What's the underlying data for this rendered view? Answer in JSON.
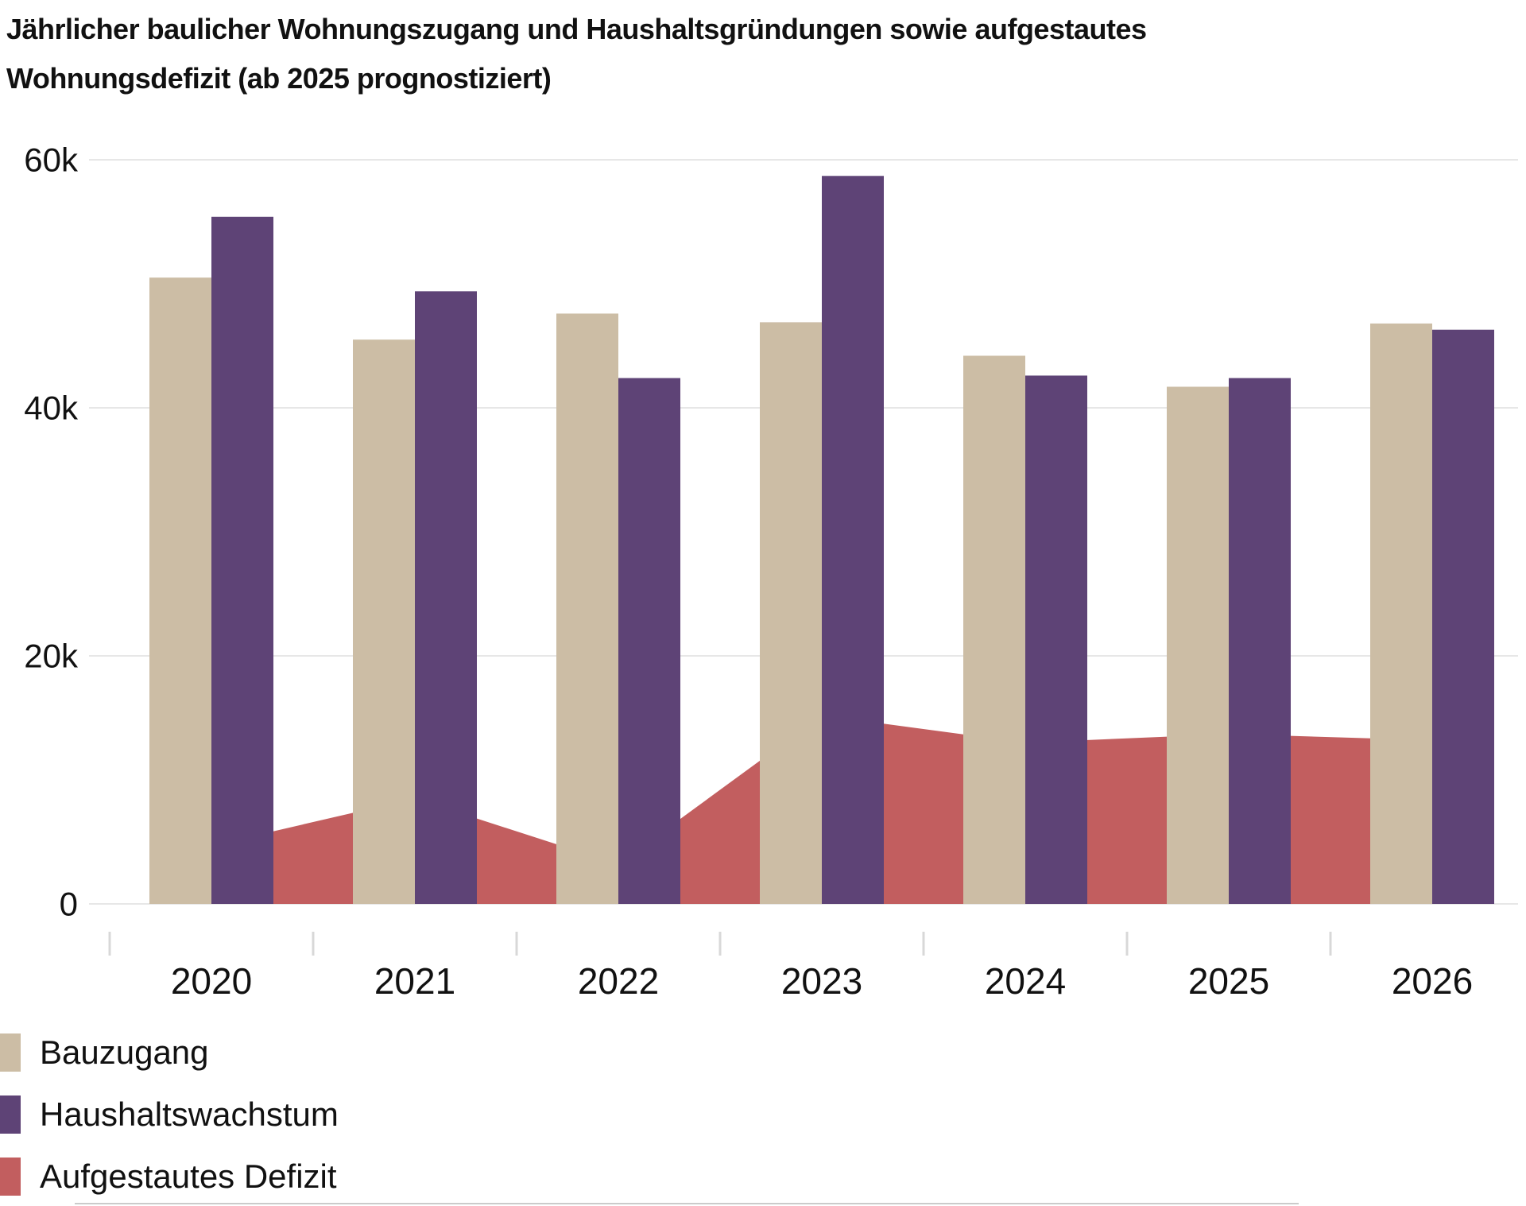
{
  "title": {
    "line1": "Jährlicher baulicher Wohnungszugang und Haushaltsgründungen sowie aufgestautes",
    "line2": "Wohnungsdefizit (ab 2025 prognostiziert)"
  },
  "chart_data": {
    "type": "bar",
    "subtype": "grouped-bars-with-area-overlay",
    "categories": [
      "2020",
      "2021",
      "2022",
      "2023",
      "2024",
      "2025",
      "2026"
    ],
    "series": [
      {
        "name": "Bauzugang",
        "type": "bar",
        "color": "#ccbda5",
        "values": [
          50500,
          45500,
          47600,
          46900,
          44200,
          41700,
          46800
        ]
      },
      {
        "name": "Haushaltswachstum",
        "type": "bar",
        "color": "#5e4376",
        "values": [
          55400,
          49400,
          42400,
          58700,
          42600,
          42400,
          46300
        ]
      },
      {
        "name": "Aufgestautes Defizit",
        "type": "area",
        "color": "#c25e5f",
        "values": [
          4700,
          8500,
          3200,
          15200,
          13000,
          13700,
          13200
        ]
      }
    ],
    "y_axis": {
      "ticks": [
        {
          "value": 0,
          "label": "0"
        },
        {
          "value": 20000,
          "label": "20k"
        },
        {
          "value": 40000,
          "label": "40k"
        },
        {
          "value": 60000,
          "label": "60k"
        }
      ],
      "ylim": [
        0,
        62000
      ],
      "grid": true
    },
    "x_axis": {
      "tick_marks_between_categories": true
    },
    "legend_position": "bottom-left",
    "colors": {
      "grid_line": "#e7e7e7",
      "tick_mark": "#d8d8d8",
      "axis_text": "#111111",
      "background": "#ffffff"
    }
  }
}
